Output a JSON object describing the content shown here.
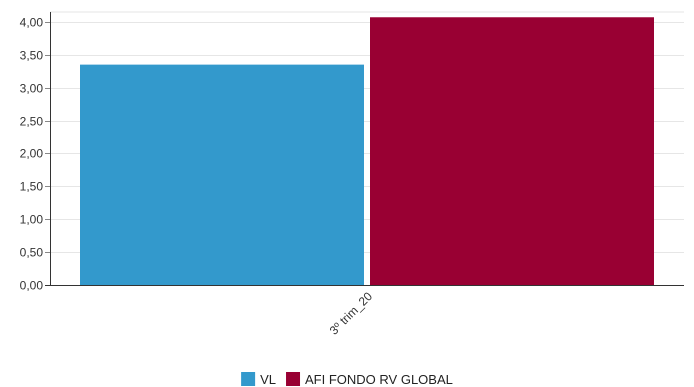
{
  "chart_data": {
    "type": "bar",
    "categories": [
      "3º trim_20"
    ],
    "series": [
      {
        "name": "VL",
        "values": [
          3.35
        ],
        "color": "#3399cc"
      },
      {
        "name": "AFI FONDO RV GLOBAL",
        "values": [
          4.07
        ],
        "color": "#990033"
      }
    ],
    "ylim": [
      0,
      4.15
    ],
    "yticks": [
      "0,00",
      "0,50",
      "1,00",
      "1,50",
      "2,00",
      "2,50",
      "3,00",
      "3,50",
      "4,00"
    ],
    "ytick_values": [
      0,
      0.5,
      1,
      1.5,
      2,
      2.5,
      3,
      3.5,
      4
    ],
    "grid": true,
    "legend_position": "bottom-center",
    "title": "",
    "xlabel": "",
    "ylabel": ""
  }
}
